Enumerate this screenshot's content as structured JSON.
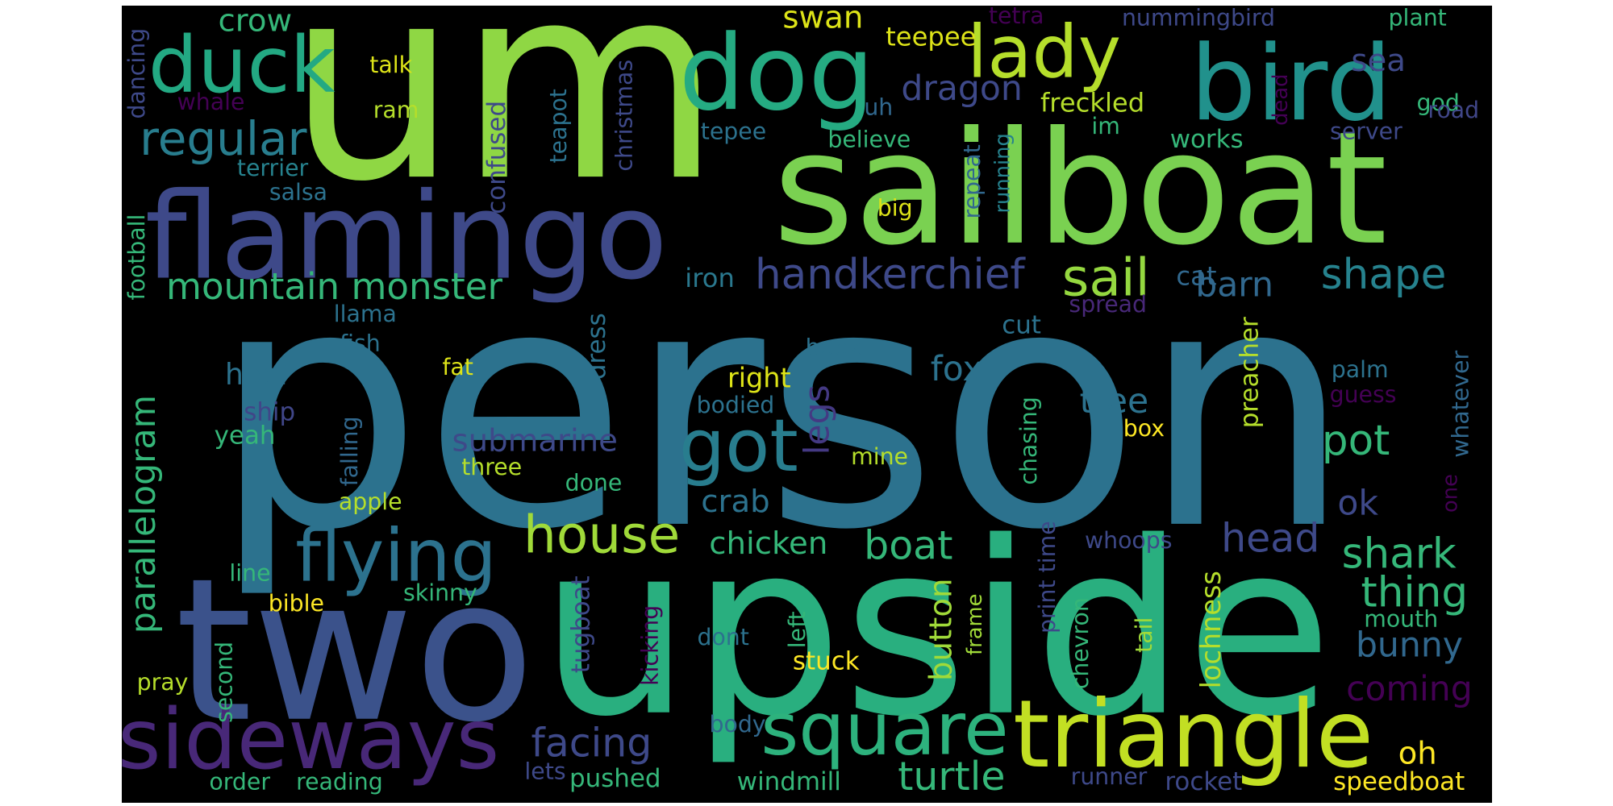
{
  "chart_data": {
    "type": "wordcloud",
    "words": [
      {
        "text": "person",
        "color": "#2c728e"
      },
      {
        "text": "um",
        "color": "#8fd744"
      },
      {
        "text": "sailboat",
        "color": "#7ad151"
      },
      {
        "text": "upside",
        "color": "#29af7f"
      },
      {
        "text": "two",
        "color": "#3b528b"
      },
      {
        "text": "flamingo",
        "color": "#3e4989"
      },
      {
        "text": "bird",
        "color": "#21918c"
      },
      {
        "text": "dog",
        "color": "#25ab82"
      },
      {
        "text": "lady",
        "color": "#b5de2b"
      },
      {
        "text": "duck",
        "color": "#23a983"
      },
      {
        "text": "triangle",
        "color": "#c2df23"
      },
      {
        "text": "square",
        "color": "#2db27d"
      },
      {
        "text": "sideways",
        "color": "#482878"
      },
      {
        "text": "flying",
        "color": "#2c728e"
      },
      {
        "text": "got",
        "color": "#287d8e"
      },
      {
        "text": "house",
        "color": "#a0da39"
      },
      {
        "text": "regular",
        "color": "#287d8e"
      },
      {
        "text": "mountain monster",
        "color": "#35b779"
      },
      {
        "text": "handkerchief",
        "color": "#3e4989"
      },
      {
        "text": "sail",
        "color": "#95d840"
      },
      {
        "text": "shape",
        "color": "#26828e"
      },
      {
        "text": "barn",
        "color": "#31688e"
      },
      {
        "text": "cat",
        "color": "#31688e"
      },
      {
        "text": "iron",
        "color": "#2a788e"
      },
      {
        "text": "spread",
        "color": "#482878"
      },
      {
        "text": "swan",
        "color": "#dde318"
      },
      {
        "text": "crow",
        "color": "#35b779"
      },
      {
        "text": "teepee",
        "color": "#dde318"
      },
      {
        "text": "tetra",
        "color": "#440154"
      },
      {
        "text": "nummingbird",
        "color": "#3e4989"
      },
      {
        "text": "plant",
        "color": "#35b779"
      },
      {
        "text": "sea",
        "color": "#3e4989"
      },
      {
        "text": "god",
        "color": "#35b779"
      },
      {
        "text": "road",
        "color": "#404688"
      },
      {
        "text": "dead",
        "color": "#440154"
      },
      {
        "text": "talk",
        "color": "#dde318"
      },
      {
        "text": "ram",
        "color": "#b5de2b"
      },
      {
        "text": "whale",
        "color": "#440154"
      },
      {
        "text": "dancing",
        "color": "#3e4989"
      },
      {
        "text": "terrier",
        "color": "#26828e"
      },
      {
        "text": "salsa",
        "color": "#2c728e"
      },
      {
        "text": "confused",
        "color": "#3e4989"
      },
      {
        "text": "teapot",
        "color": "#2c728e"
      },
      {
        "text": "christmas",
        "color": "#3e4989"
      },
      {
        "text": "dragon",
        "color": "#3e4989"
      },
      {
        "text": "uh",
        "color": "#31688e"
      },
      {
        "text": "freckled",
        "color": "#b5de2b"
      },
      {
        "text": "im",
        "color": "#35b779"
      },
      {
        "text": "tepee",
        "color": "#2c728e"
      },
      {
        "text": "believe",
        "color": "#35b779"
      },
      {
        "text": "works",
        "color": "#35b779"
      },
      {
        "text": "server",
        "color": "#3e4989"
      },
      {
        "text": "repeat",
        "color": "#31688e"
      },
      {
        "text": "running",
        "color": "#26828e"
      },
      {
        "text": "big",
        "color": "#dde318"
      },
      {
        "text": "football",
        "color": "#35b779"
      },
      {
        "text": "llama",
        "color": "#2c728e"
      },
      {
        "text": "fish",
        "color": "#2c728e"
      },
      {
        "text": "hoof",
        "color": "#2c728e"
      },
      {
        "text": "fat",
        "color": "#dde318"
      },
      {
        "text": "dress",
        "color": "#2c728e"
      },
      {
        "text": "book",
        "color": "#2c728e"
      },
      {
        "text": "cut",
        "color": "#2c728e"
      },
      {
        "text": "preacher",
        "color": "#b5de2b"
      },
      {
        "text": "whatever",
        "color": "#31688e"
      },
      {
        "text": "palm",
        "color": "#2c728e"
      },
      {
        "text": "guess",
        "color": "#440154"
      },
      {
        "text": "fox",
        "color": "#2c728e"
      },
      {
        "text": "right",
        "color": "#dde318"
      },
      {
        "text": "bodied",
        "color": "#2c728e"
      },
      {
        "text": "legs",
        "color": "#443983"
      },
      {
        "text": "tree",
        "color": "#2c728e"
      },
      {
        "text": "box",
        "color": "#fde725"
      },
      {
        "text": "parallelogram",
        "color": "#35b779"
      },
      {
        "text": "ship",
        "color": "#404688"
      },
      {
        "text": "yeah",
        "color": "#35b779"
      },
      {
        "text": "falling",
        "color": "#31688e"
      },
      {
        "text": "submarine",
        "color": "#3e4989"
      },
      {
        "text": "three",
        "color": "#b5de2b"
      },
      {
        "text": "mine",
        "color": "#b5de2b"
      },
      {
        "text": "chasing",
        "color": "#35b779"
      },
      {
        "text": "pot",
        "color": "#35b779"
      },
      {
        "text": "apple",
        "color": "#b5de2b"
      },
      {
        "text": "done",
        "color": "#35b779"
      },
      {
        "text": "crab",
        "color": "#2c728e"
      },
      {
        "text": "ok",
        "color": "#3e4989"
      },
      {
        "text": "one",
        "color": "#440154"
      },
      {
        "text": "print time",
        "color": "#3e4989"
      },
      {
        "text": "whoops",
        "color": "#3e4989"
      },
      {
        "text": "head",
        "color": "#3e4989"
      },
      {
        "text": "chicken",
        "color": "#35b779"
      },
      {
        "text": "boat",
        "color": "#35b779"
      },
      {
        "text": "shark",
        "color": "#35b779"
      },
      {
        "text": "thing",
        "color": "#35b779"
      },
      {
        "text": "button",
        "color": "#a0da39"
      },
      {
        "text": "line",
        "color": "#35b779"
      },
      {
        "text": "bible",
        "color": "#fde725"
      },
      {
        "text": "skinny",
        "color": "#35b779"
      },
      {
        "text": "tugboat",
        "color": "#3e4989"
      },
      {
        "text": "kicking",
        "color": "#440154"
      },
      {
        "text": "left",
        "color": "#35b779"
      },
      {
        "text": "frame",
        "color": "#a0da39"
      },
      {
        "text": "chevron",
        "color": "#35b779"
      },
      {
        "text": "tail",
        "color": "#a0da39"
      },
      {
        "text": "lochness",
        "color": "#b5de2b"
      },
      {
        "text": "bunny",
        "color": "#31688e"
      },
      {
        "text": "coming",
        "color": "#440154"
      },
      {
        "text": "mouth",
        "color": "#35b779"
      },
      {
        "text": "dont",
        "color": "#2c728e"
      },
      {
        "text": "second",
        "color": "#35b779"
      },
      {
        "text": "pray",
        "color": "#b5de2b"
      },
      {
        "text": "stuck",
        "color": "#fde725"
      },
      {
        "text": "body",
        "color": "#31688e"
      },
      {
        "text": "facing",
        "color": "#3e4989"
      },
      {
        "text": "oh",
        "color": "#fde725"
      },
      {
        "text": "order",
        "color": "#35b779"
      },
      {
        "text": "reading",
        "color": "#35b779"
      },
      {
        "text": "lets",
        "color": "#3e4989"
      },
      {
        "text": "pushed",
        "color": "#35b779"
      },
      {
        "text": "windmill",
        "color": "#35b779"
      },
      {
        "text": "turtle",
        "color": "#35b779"
      },
      {
        "text": "runner",
        "color": "#3e4989"
      },
      {
        "text": "rocket",
        "color": "#3e4989"
      },
      {
        "text": "speedboat",
        "color": "#fde725"
      }
    ]
  }
}
